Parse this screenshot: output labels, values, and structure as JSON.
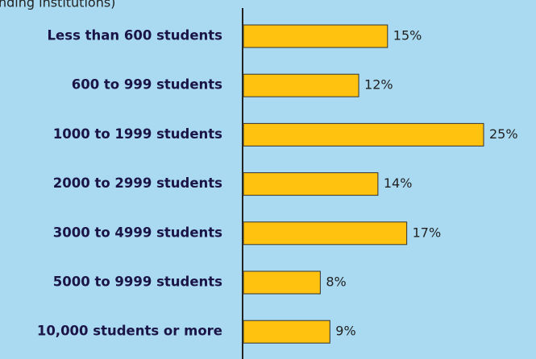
{
  "chart_data": {
    "type": "bar",
    "orientation": "horizontal",
    "subtitle": "nding institutions)",
    "categories": [
      "Less than 600 students",
      "600 to 999 students",
      "1000 to 1999 students",
      "2000 to 2999 students",
      "3000 to 4999 students",
      "5000 to 9999 students",
      "10,000 students or more"
    ],
    "values": [
      15,
      12,
      25,
      14,
      17,
      8,
      9
    ],
    "value_labels": [
      "15%",
      "12%",
      "25%",
      "14%",
      "17%",
      "8%",
      "9%"
    ],
    "color": "#ffc20e"
  }
}
